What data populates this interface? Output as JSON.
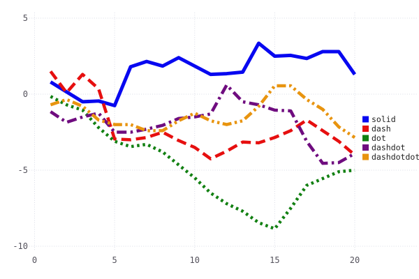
{
  "chart_data": {
    "type": "line",
    "title": "",
    "xlabel": "",
    "ylabel": "",
    "grid": true,
    "grid_style": "dotted",
    "legend_position": "center-right",
    "xlim": [
      0,
      20
    ],
    "ylim": [
      -10,
      5
    ],
    "x_ticks": [
      0,
      5,
      10,
      15,
      20
    ],
    "y_ticks": [
      5,
      0,
      -5,
      -10
    ],
    "x_tick_labels": [
      "0",
      "5",
      "10",
      "15",
      "20"
    ],
    "y_tick_labels": [
      "5",
      "0",
      "-5",
      "-10"
    ],
    "x": [
      1,
      2,
      3,
      4,
      5,
      6,
      7,
      8,
      9,
      10,
      11,
      12,
      13,
      14,
      15,
      16,
      17,
      18,
      19,
      20
    ],
    "series": [
      {
        "name": "solid",
        "line_style": "solid",
        "color": "#0808f0",
        "values": [
          0.8,
          0.15,
          -0.5,
          -0.45,
          -0.75,
          1.8,
          2.15,
          1.85,
          2.4,
          1.85,
          1.3,
          1.35,
          1.45,
          3.35,
          2.5,
          2.55,
          2.35,
          2.8,
          2.8,
          1.3
        ]
      },
      {
        "name": "dash",
        "line_style": "dash",
        "color": "#e60f0f",
        "values": [
          1.5,
          0.1,
          1.3,
          0.35,
          -2.95,
          -3.0,
          -2.85,
          -2.5,
          -3.05,
          -3.5,
          -4.25,
          -3.75,
          -3.15,
          -3.2,
          -2.85,
          -2.4,
          -1.7,
          -2.4,
          -3.1,
          -4.0
        ]
      },
      {
        "name": "dot",
        "line_style": "dot",
        "color": "#128012",
        "values": [
          -0.15,
          -0.7,
          -1.05,
          -2.2,
          -3.1,
          -3.45,
          -3.3,
          -3.8,
          -4.65,
          -5.5,
          -6.5,
          -7.2,
          -7.7,
          -8.45,
          -8.85,
          -7.5,
          -6.0,
          -5.55,
          -5.1,
          -5.0
        ]
      },
      {
        "name": "dashdot",
        "line_style": "dashdot",
        "color": "#6f0c7f",
        "values": [
          -1.15,
          -1.85,
          -1.5,
          -1.25,
          -2.5,
          -2.5,
          -2.3,
          -2.05,
          -1.6,
          -1.5,
          -1.3,
          0.6,
          -0.5,
          -0.7,
          -1.05,
          -1.1,
          -3.1,
          -4.55,
          -4.5,
          -3.9
        ]
      },
      {
        "name": "dashdotdot",
        "line_style": "dashdotdot",
        "color": "#e8940f",
        "values": [
          -0.7,
          -0.35,
          -0.8,
          -1.7,
          -2.0,
          -2.0,
          -2.4,
          -2.4,
          -1.75,
          -1.25,
          -1.75,
          -2.0,
          -1.75,
          -0.8,
          0.55,
          0.55,
          -0.35,
          -1.0,
          -2.15,
          -2.85
        ]
      }
    ]
  },
  "colors": {
    "background": "#ffffff",
    "gridline": "#d9dce6",
    "tick_label": "#54525c",
    "legend_label": "#1f1f1f"
  }
}
